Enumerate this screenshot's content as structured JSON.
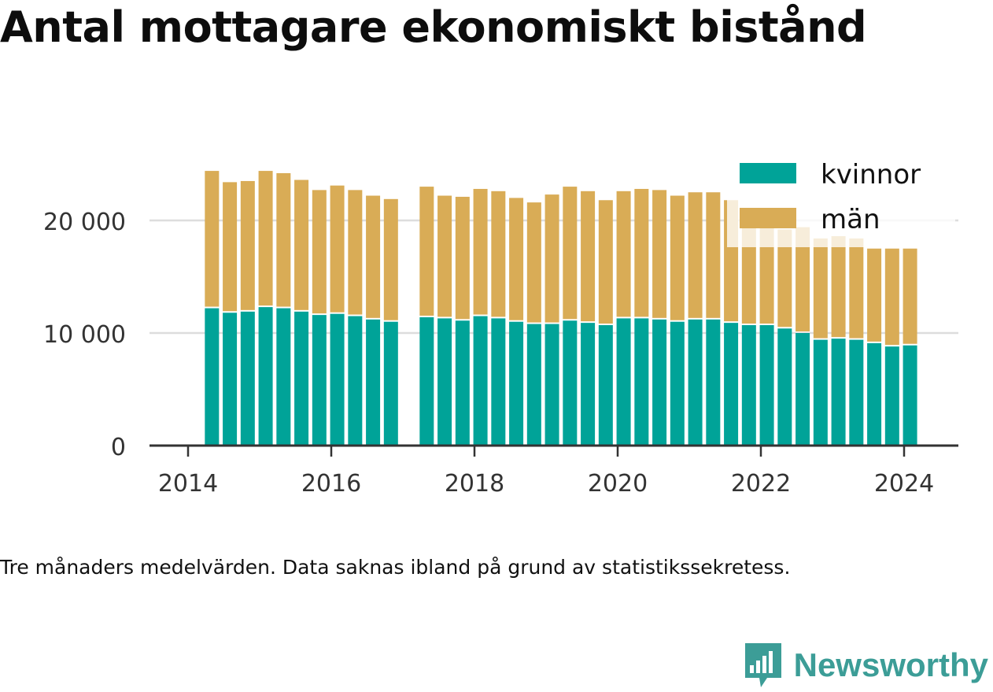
{
  "chart_data": {
    "type": "bar",
    "stacked": true,
    "title": "Antal mottagare ekonomiskt bistånd",
    "caption": "Tre månaders medelvärden. Data saknas ibland på grund av statistikssekretess.",
    "x": [
      "2014-05",
      "2014-08",
      "2014-11",
      "2015-02",
      "2015-05",
      "2015-08",
      "2015-11",
      "2016-02",
      "2016-05",
      "2016-08",
      "2016-11",
      "2017-02",
      "2017-05",
      "2017-08",
      "2017-11",
      "2018-02",
      "2018-05",
      "2018-08",
      "2018-11",
      "2019-02",
      "2019-05",
      "2019-08",
      "2019-11",
      "2020-02",
      "2020-05",
      "2020-08",
      "2020-11",
      "2021-02",
      "2021-05",
      "2021-08",
      "2021-11",
      "2022-02",
      "2022-05",
      "2022-08",
      "2022-11",
      "2023-02",
      "2023-05",
      "2023-08",
      "2023-11",
      "2024-02"
    ],
    "series": [
      {
        "name": "kvinnor",
        "color": "#00a398",
        "values": [
          12200,
          11800,
          11900,
          12300,
          12200,
          11900,
          11600,
          11700,
          11500,
          11200,
          11000,
          null,
          11400,
          11300,
          11100,
          11500,
          11300,
          11000,
          10800,
          10800,
          11100,
          10900,
          10700,
          11300,
          11300,
          11200,
          11000,
          11200,
          11200,
          10900,
          10700,
          10700,
          10400,
          10000,
          9400,
          9500,
          9400,
          9100,
          8800,
          8900
        ]
      },
      {
        "name": "män",
        "color": "#d9ac56",
        "values": [
          12200,
          11600,
          11600,
          12100,
          12000,
          11700,
          11100,
          11400,
          11200,
          11000,
          10900,
          null,
          11600,
          10900,
          11000,
          11300,
          11300,
          11000,
          10800,
          11500,
          11900,
          11700,
          11100,
          11300,
          11500,
          11500,
          11200,
          11300,
          11300,
          10900,
          8600,
          8600,
          8800,
          9400,
          9000,
          9100,
          9000,
          8400,
          8700,
          8600
        ]
      }
    ],
    "y_ticks": [
      0,
      10000,
      20000
    ],
    "y_tick_labels": [
      "0",
      "10 000",
      "20 000"
    ],
    "ylim": [
      0,
      27000
    ],
    "x_ticks": [
      "2014",
      "2016",
      "2018",
      "2020",
      "2022",
      "2024"
    ],
    "grid": true,
    "legend_position": "top-right"
  },
  "brand": {
    "name": "Newsworthy",
    "color": "#3c9d97",
    "icon": "newsworthy-logo-icon"
  }
}
